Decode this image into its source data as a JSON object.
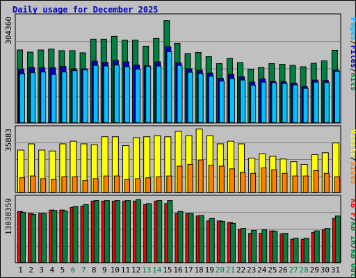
{
  "colors": {
    "background": "#c0c0c0",
    "plot_bg": "#c0c0c0",
    "hits": "#008040",
    "files": "#0000c0",
    "pages": "#00c0ff",
    "visits": "#ffff00",
    "sites": "#ff8000",
    "kbf": "#ff0000",
    "kbin": "#008040",
    "kbout": "#008040",
    "title": "#0000c0",
    "weekend_label": "#008040",
    "grid": "#808080"
  },
  "chart_data": {
    "type": "bar",
    "title": "Daily usage for December 2025",
    "x": [
      "1",
      "2",
      "3",
      "4",
      "5",
      "6",
      "7",
      "8",
      "9",
      "10",
      "11",
      "12",
      "13",
      "14",
      "15",
      "16",
      "17",
      "18",
      "19",
      "20",
      "21",
      "22",
      "23",
      "24",
      "25",
      "26",
      "27",
      "28",
      "29",
      "30",
      "31"
    ],
    "weekend_days": [
      "6",
      "7",
      "13",
      "14",
      "20",
      "21",
      "27",
      "28"
    ],
    "panels": [
      {
        "id": "top",
        "max_label": "304360",
        "ymax": 304360,
        "legend": [
          "Pages",
          "/",
          "Files",
          "/",
          "Hits"
        ],
        "legend_colors": [
          "#00c0ff",
          "#000000",
          "#0000c0",
          "#000000",
          "#008040"
        ],
        "series": [
          {
            "name": "Hits",
            "values": [
              210000,
              204000,
              210000,
              213000,
              208000,
              208000,
              202000,
              241000,
              241000,
              249000,
              238000,
              238000,
              221000,
              243000,
              294000,
              229000,
              200000,
              203000,
              191000,
              171000,
              186000,
              174000,
              155000,
              160000,
              171000,
              169000,
              166000,
              162000,
              172000,
              179000,
              209000
            ]
          },
          {
            "name": "Files",
            "values": [
              155000,
              160000,
              159000,
              159000,
              163000,
              156000,
              156000,
              178000,
              175000,
              180000,
              176000,
              167000,
              165000,
              176000,
              219000,
              173000,
              156000,
              152000,
              144000,
              129000,
              140000,
              133000,
              118000,
              127000,
              120000,
              119000,
              115000,
              105000,
              124000,
              123000,
              152000
            ]
          },
          {
            "name": "Pages",
            "values": [
              142000,
              145000,
              147000,
              140000,
              147000,
              151000,
              153000,
              166000,
              164000,
              167000,
              162000,
              155000,
              163000,
              164000,
              205000,
              166000,
              146000,
              143000,
              135000,
              121000,
              128000,
              124000,
              109000,
              118000,
              116000,
              114000,
              110000,
              100000,
              118000,
              117000,
              149000
            ]
          }
        ]
      },
      {
        "id": "middle",
        "max_label": "35883",
        "ymax": 35883,
        "legend": [
          "Visits",
          "/",
          "Sites"
        ],
        "legend_colors": [
          "#ffff00",
          "#000000",
          "#ff8000"
        ],
        "series": [
          {
            "name": "Visits",
            "values": [
              24000,
              27500,
              24000,
              23500,
              27500,
              29000,
              27500,
              27000,
              31500,
              31500,
              26500,
              31000,
              31500,
              32000,
              31500,
              34500,
              32000,
              35800,
              32000,
              27500,
              29000,
              27500,
              19500,
              22000,
              20500,
              19000,
              17500,
              16000,
              21500,
              22500,
              28000
            ]
          },
          {
            "name": "Sites",
            "values": [
              8500,
              9500,
              8000,
              7500,
              9000,
              9000,
              7000,
              8000,
              9500,
              9500,
              7500,
              8000,
              8500,
              9000,
              9500,
              15000,
              16000,
              18500,
              15500,
              15000,
              13500,
              11500,
              11000,
              14000,
              13000,
              11000,
              9500,
              9500,
              12500,
              11000,
              9000
            ]
          }
        ]
      },
      {
        "id": "bottom",
        "max_label": "13038359",
        "ymax": 13038359,
        "legend": [
          "KB F",
          "/",
          "KB In",
          "/",
          "KB Out"
        ],
        "legend_colors": [
          "#ff0000",
          "#000000",
          "#008040",
          "#000000",
          "#008040"
        ],
        "series": [
          {
            "name": "KB F",
            "values": [
              10400000,
              10000000,
              10000000,
              10700000,
              10700000,
              11200000,
              11500000,
              12500000,
              12500000,
              12500000,
              12500000,
              12500000,
              11800000,
              12500000,
              12000000,
              10000000,
              10000000,
              9500000,
              8500000,
              8500000,
              8200000,
              6800000,
              6000000,
              6000000,
              6500000,
              5900000,
              4800000,
              4800000,
              6200000,
              6700000,
              9000000
            ]
          },
          {
            "name": "KB In",
            "values": [
              10200000,
              9800000,
              10000000,
              10600000,
              10500000,
              11400000,
              11800000,
              12600000,
              12600000,
              12600000,
              12600000,
              12800000,
              12000000,
              12600000,
              12600000,
              10400000,
              10000000,
              9600000,
              9000000,
              8400000,
              8000000,
              7000000,
              6600000,
              6700000,
              6400000,
              6000000,
              5000000,
              5000000,
              6500000,
              7000000,
              9500000
            ]
          }
        ]
      }
    ]
  }
}
